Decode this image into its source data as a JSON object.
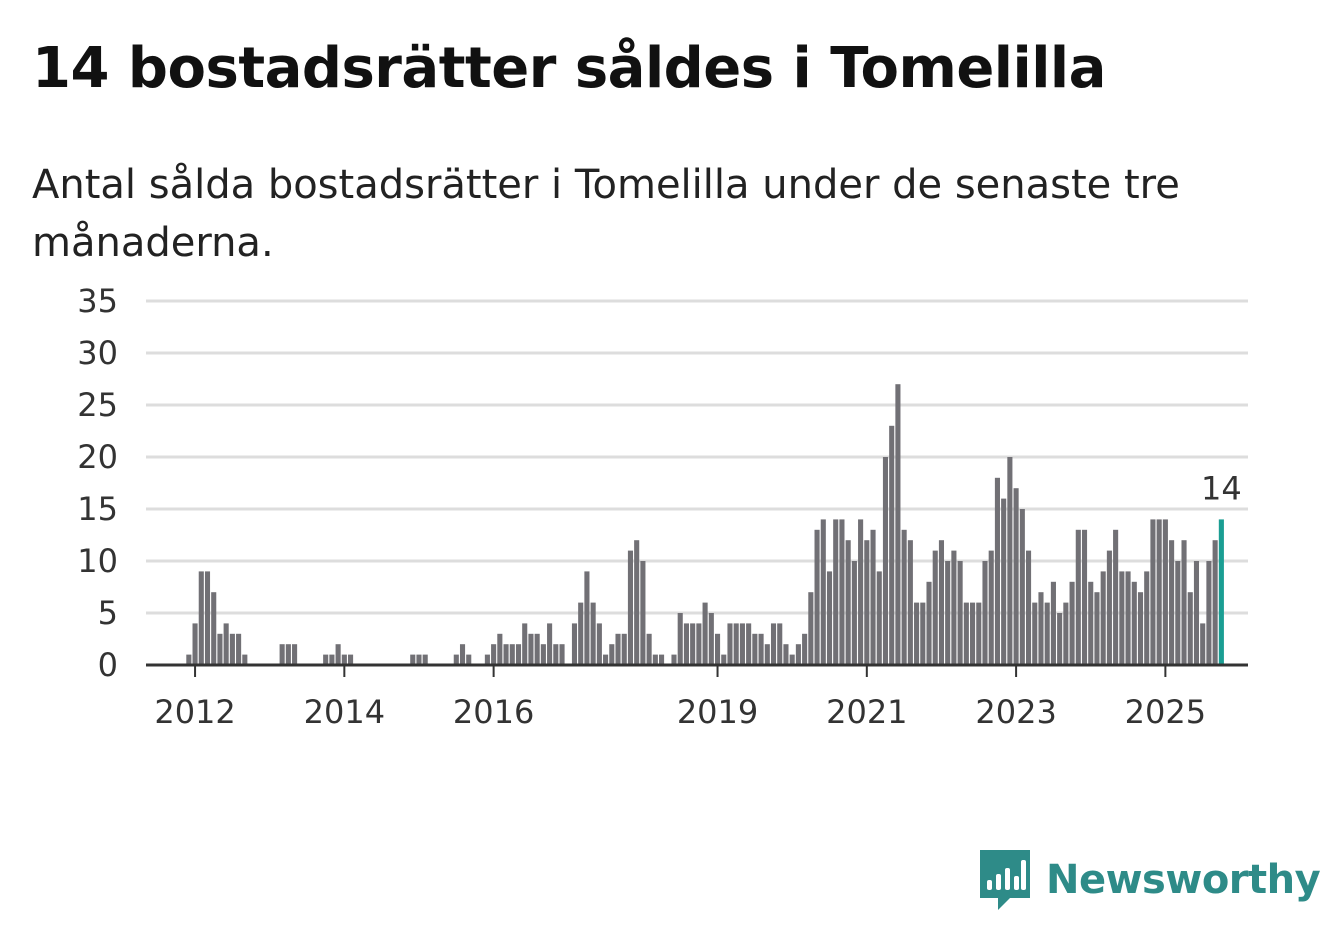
{
  "title": "14 bostadsrätter såldes i Tomelilla",
  "subtitle": "Antal sålda bostadsrätter i Tomelilla under de senaste tre månaderna.",
  "brand": {
    "name": "Newsworthy",
    "logo_icon": "newsworthy-bar-chart-logo-icon"
  },
  "colors": {
    "bar": "#717075",
    "highlight": "#1a9e93",
    "grid": "#dddddd",
    "axis": "#333333",
    "brand": "#2e8b88"
  },
  "chart_data": {
    "type": "bar",
    "x_start": "2011-10",
    "interval": "month",
    "x_tick_labels": [
      "2012",
      "2014",
      "2016",
      "2019",
      "2021",
      "2023",
      "2025"
    ],
    "y_ticks": [
      0,
      5,
      10,
      15,
      20,
      25,
      30,
      35
    ],
    "ylim": [
      0,
      35
    ],
    "grid": true,
    "highlight_label": "14",
    "values": [
      0,
      0,
      1,
      4,
      9,
      9,
      7,
      3,
      4,
      3,
      3,
      1,
      0,
      0,
      0,
      0,
      0,
      2,
      2,
      2,
      0,
      0,
      0,
      0,
      1,
      1,
      2,
      1,
      1,
      0,
      0,
      0,
      0,
      0,
      0,
      0,
      0,
      0,
      1,
      1,
      1,
      0,
      0,
      0,
      0,
      1,
      2,
      1,
      0,
      0,
      1,
      2,
      3,
      2,
      2,
      2,
      4,
      3,
      3,
      2,
      4,
      2,
      2,
      0,
      4,
      6,
      9,
      6,
      4,
      1,
      2,
      3,
      3,
      11,
      12,
      10,
      3,
      1,
      1,
      0,
      1,
      5,
      4,
      4,
      4,
      6,
      5,
      3,
      1,
      4,
      4,
      4,
      4,
      3,
      3,
      2,
      4,
      4,
      2,
      1,
      2,
      3,
      7,
      13,
      14,
      9,
      14,
      14,
      12,
      10,
      14,
      12,
      13,
      9,
      20,
      23,
      27,
      13,
      12,
      6,
      6,
      8,
      11,
      12,
      10,
      11,
      10,
      6,
      6,
      6,
      10,
      11,
      18,
      16,
      20,
      17,
      15,
      11,
      6,
      7,
      6,
      8,
      5,
      6,
      8,
      13,
      13,
      8,
      7,
      9,
      11,
      13,
      9,
      9,
      8,
      7,
      9,
      14,
      14,
      14,
      12,
      10,
      12,
      7,
      10,
      4,
      10,
      12,
      14
    ]
  }
}
